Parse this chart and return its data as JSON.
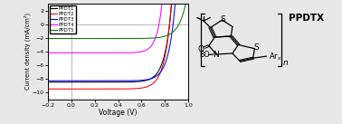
{
  "xlabel": "Voltage (V)",
  "ylabel": "Current density (mA/cm²)",
  "xlim": [
    -0.2,
    1.0
  ],
  "ylim": [
    -11,
    3
  ],
  "yticks": [
    -10,
    -8,
    -6,
    -4,
    -2,
    0,
    2
  ],
  "xticks": [
    -0.2,
    0.0,
    0.2,
    0.4,
    0.6,
    0.8,
    1.0
  ],
  "curves": [
    {
      "label": "PPDT1",
      "color": "black",
      "Jsc": 8.5,
      "Voc": 0.84,
      "n": 2.2
    },
    {
      "label": "PPDT2",
      "color": "red",
      "Jsc": 9.5,
      "Voc": 0.84,
      "n": 2.2
    },
    {
      "label": "PPDT3",
      "color": "blue",
      "Jsc": 8.3,
      "Voc": 0.87,
      "n": 2.2
    },
    {
      "label": "PPDT4",
      "color": "magenta",
      "Jsc": 4.2,
      "Voc": 0.75,
      "n": 1.8
    },
    {
      "label": "PPDT5",
      "color": "green",
      "Jsc": 2.1,
      "Voc": 0.92,
      "n": 2.5
    }
  ],
  "molecule_label": "PPDTX",
  "fig_bg": "#e8e8e8"
}
